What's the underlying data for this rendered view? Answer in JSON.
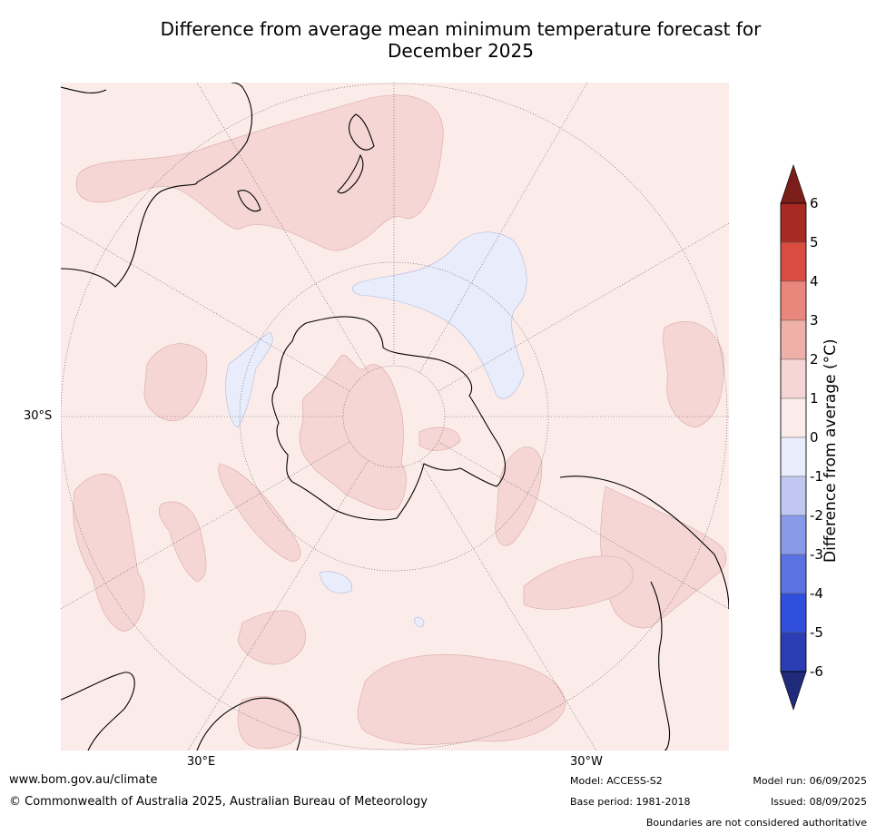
{
  "title": {
    "line1": "Difference from average mean minimum temperature forecast for",
    "line2": "December 2025"
  },
  "axes": {
    "lat_label": "30°S",
    "lon_left": "30°E",
    "lon_right": "30°W"
  },
  "colorbar": {
    "label": "Difference from average (°C)",
    "ticks": [
      "6",
      "5",
      "4",
      "3",
      "2",
      "1",
      "0",
      "-1",
      "-2",
      "-3",
      "-4",
      "-5",
      "-6"
    ],
    "colors": [
      "#a82a22",
      "#da4c3f",
      "#e9877c",
      "#eeb0a8",
      "#f5d6d4",
      "#fbece9",
      "#e8ecfb",
      "#c0c8f2",
      "#8a9aea",
      "#5b73e2",
      "#2f4fdc",
      "#2a3db2"
    ],
    "overflow_high": "#7a1e1a",
    "overflow_low": "#1f2a7a"
  },
  "map_colors": {
    "background": "#fbece9",
    "warm": "#f5d6d4",
    "cool": "#e8ecfb"
  },
  "footer": {
    "website": "www.bom.gov.au/climate",
    "copyright": "© Commonwealth of Australia 2025, Australian Bureau of Meteorology",
    "model": "Model: ACCESS-S2",
    "base_period": "Base period: 1981-2018",
    "model_run": "Model run: 06/09/2025",
    "issued": "Issued: 08/09/2025",
    "disclaimer": "Boundaries are not considered authoritative"
  }
}
